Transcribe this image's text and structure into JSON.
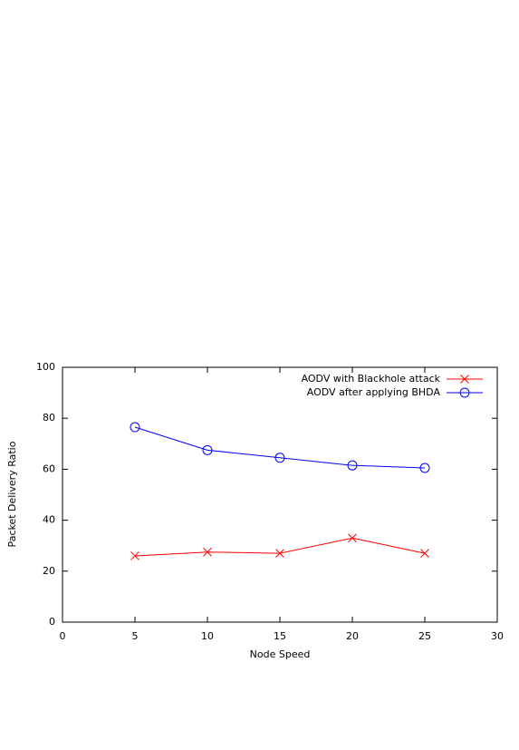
{
  "chart_data": {
    "type": "line",
    "x_label": "Node Speed",
    "y_label": "Packet Delivery Ratio",
    "x": [
      5,
      10,
      15,
      20,
      25
    ],
    "series": [
      {
        "name": "AODV with Blackhole attack",
        "color": "#ff0000",
        "marker": "x",
        "values": [
          26,
          27.5,
          27,
          33,
          27
        ]
      },
      {
        "name": "AODV after applying BHDA",
        "color": "#0000ff",
        "marker": "o",
        "values": [
          76.5,
          67.5,
          64.5,
          61.5,
          60.5
        ]
      }
    ],
    "xlim": [
      0,
      30
    ],
    "xticks": [
      0,
      5,
      10,
      15,
      20,
      25,
      30
    ],
    "ylim": [
      0,
      100
    ],
    "yticks": [
      0,
      20,
      40,
      60,
      80,
      100
    ],
    "legend": "top-right"
  }
}
